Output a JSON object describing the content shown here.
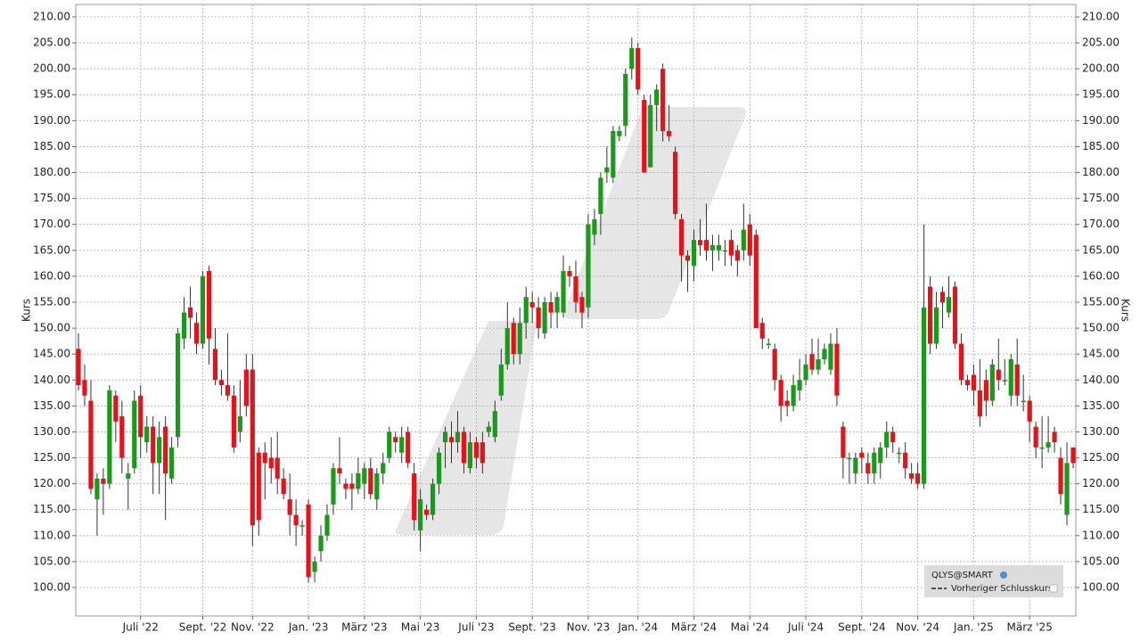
{
  "chart_data": {
    "type": "candlestick",
    "y_label": "Kurs",
    "up_color": "#1a9a1a",
    "down_color": "#e6121a",
    "grid": true,
    "legend": {
      "title": "QLYS@SMART",
      "items": [
        "Vorheriger Schlusskurs"
      ],
      "position": "lower right"
    },
    "ylim": [
      94.5,
      212.4
    ],
    "yticks": [
      {
        "value": 100,
        "label": "100.00"
      },
      {
        "value": 105,
        "label": "105.00"
      },
      {
        "value": 110,
        "label": "110.00"
      },
      {
        "value": 115,
        "label": "115.00"
      },
      {
        "value": 120,
        "label": "120.00"
      },
      {
        "value": 125,
        "label": "125.00"
      },
      {
        "value": 130,
        "label": "130.00"
      },
      {
        "value": 135,
        "label": "135.00"
      },
      {
        "value": 140,
        "label": "140.00"
      },
      {
        "value": 145,
        "label": "145.00"
      },
      {
        "value": 150,
        "label": "150.00"
      },
      {
        "value": 155,
        "label": "155.00"
      },
      {
        "value": 160,
        "label": "160.00"
      },
      {
        "value": 165,
        "label": "165.00"
      },
      {
        "value": 170,
        "label": "170.00"
      },
      {
        "value": 175,
        "label": "175.00"
      },
      {
        "value": 180,
        "label": "180.00"
      },
      {
        "value": 185,
        "label": "185.00"
      },
      {
        "value": 190,
        "label": "190.00"
      },
      {
        "value": 195,
        "label": "195.00"
      },
      {
        "value": 200,
        "label": "200.00"
      },
      {
        "value": 205,
        "label": "205.00"
      },
      {
        "value": 210,
        "label": "210.00"
      }
    ],
    "categories": [
      null,
      null,
      null,
      null,
      null,
      null,
      null,
      null,
      null,
      null,
      "Juli '22",
      null,
      null,
      null,
      null,
      null,
      null,
      null,
      null,
      null,
      "Sept. '22",
      null,
      null,
      null,
      null,
      null,
      null,
      null,
      "Nov. '22",
      null,
      null,
      null,
      null,
      null,
      null,
      null,
      null,
      "Jan. '23",
      null,
      null,
      null,
      null,
      null,
      null,
      null,
      null,
      "März '23",
      null,
      null,
      null,
      null,
      null,
      null,
      null,
      null,
      "Mai '23",
      null,
      null,
      null,
      null,
      null,
      null,
      null,
      null,
      "Juli '23",
      null,
      null,
      null,
      null,
      null,
      null,
      null,
      null,
      "Sept. '23",
      null,
      null,
      null,
      null,
      null,
      null,
      null,
      null,
      "Nov. '23",
      null,
      null,
      null,
      null,
      null,
      null,
      null,
      "Jan. '24",
      null,
      null,
      null,
      null,
      null,
      null,
      null,
      null,
      "März '24",
      null,
      null,
      null,
      null,
      null,
      null,
      null,
      null,
      "Mai '24",
      null,
      null,
      null,
      null,
      null,
      null,
      null,
      null,
      "Juli '24",
      null,
      null,
      null,
      null,
      null,
      null,
      null,
      null,
      "Sept. '24",
      null,
      null,
      null,
      null,
      null,
      null,
      null,
      null,
      "Nov. '24",
      null,
      null,
      null,
      null,
      null,
      null,
      null,
      null,
      "Jan. '25",
      null,
      null,
      null,
      null,
      null,
      null,
      null,
      null,
      "März '25",
      null,
      null,
      null,
      null,
      null,
      null,
      null
    ],
    "open": [
      146,
      140,
      136,
      117,
      121,
      120,
      137,
      133,
      121,
      123,
      137,
      128,
      131,
      124,
      131,
      121,
      129,
      148,
      154,
      151,
      147,
      161,
      146,
      140,
      139,
      137,
      130,
      142,
      142,
      126,
      126,
      125,
      125,
      121,
      117,
      114,
      112,
      116,
      103,
      107,
      110,
      116,
      123,
      120,
      120,
      119,
      120,
      123,
      117,
      122,
      125,
      129,
      126,
      130,
      122,
      111,
      115,
      114,
      120,
      128,
      129,
      128,
      130,
      123,
      128,
      128,
      130,
      129,
      137,
      143,
      151,
      145,
      151,
      155,
      154,
      149,
      155,
      153,
      153,
      161,
      160,
      156,
      154,
      168,
      172,
      180,
      179,
      187,
      189,
      200,
      204,
      194,
      181,
      193,
      200,
      188,
      184,
      171,
      164,
      162,
      167,
      167,
      165,
      165,
      165,
      167,
      165,
      165,
      170,
      168,
      151,
      147,
      146,
      140,
      136,
      135,
      138,
      140,
      145,
      142,
      144,
      142,
      147,
      131,
      125,
      122,
      126,
      124,
      122,
      124,
      127,
      130,
      126,
      126,
      122,
      122,
      120,
      158,
      147,
      157,
      153,
      158,
      147,
      140,
      141,
      138,
      140,
      136,
      142,
      140,
      137,
      143,
      136,
      136,
      131,
      127,
      127,
      130,
      125,
      114,
      127
    ],
    "close": [
      139,
      137,
      119,
      121,
      120,
      138,
      132,
      125,
      122,
      136,
      129,
      131,
      124,
      129,
      122,
      127,
      149,
      153,
      152,
      147,
      160,
      148,
      140,
      139,
      137,
      127,
      133,
      135,
      112,
      113,
      124,
      123,
      121,
      118,
      114,
      112,
      112,
      102,
      105,
      110,
      114,
      123,
      122,
      119,
      119,
      122,
      123,
      118,
      122,
      124,
      130,
      128,
      129,
      124,
      113,
      117,
      114,
      120,
      126,
      130,
      128,
      130,
      124,
      128,
      125,
      124,
      131,
      134,
      143,
      150,
      145,
      151,
      156,
      154,
      150,
      155,
      153,
      156,
      161,
      160,
      155,
      153,
      170,
      171,
      179,
      181,
      188,
      188,
      199,
      204,
      196,
      180,
      193,
      196,
      188,
      187,
      172,
      164,
      163,
      167,
      166,
      165,
      166,
      166,
      165,
      164,
      163,
      169,
      164,
      150,
      148,
      147,
      140,
      135,
      135,
      139,
      140,
      143,
      142,
      144,
      146,
      147,
      137,
      125,
      125,
      125,
      125,
      122,
      126,
      127,
      130,
      128,
      126,
      123,
      121,
      120,
      154,
      147,
      154,
      155,
      156,
      147,
      140,
      139,
      138,
      133,
      136,
      143,
      140,
      140,
      144,
      137,
      136,
      132,
      127,
      127,
      128,
      128,
      118,
      124,
      124
    ],
    "high": [
      149,
      143,
      140,
      122,
      123,
      139,
      138,
      136,
      124,
      138,
      139,
      133,
      133,
      132,
      133,
      129,
      150,
      156,
      158,
      153,
      161,
      162,
      150,
      142,
      149,
      139,
      140,
      145,
      145,
      127,
      128,
      129,
      130,
      123,
      122,
      117,
      113,
      117,
      106,
      112,
      116,
      124,
      129,
      121,
      122,
      125,
      124,
      125,
      123,
      126,
      131,
      130,
      131,
      131,
      124,
      119,
      116,
      121,
      127,
      131,
      132,
      134,
      131,
      130,
      129,
      130,
      132,
      136,
      146,
      155,
      152,
      154,
      158,
      157,
      156,
      156,
      157,
      157,
      164,
      162,
      163,
      157,
      172,
      173,
      180,
      185,
      189,
      189,
      200,
      206,
      205,
      195,
      195,
      197,
      201,
      193,
      185,
      172,
      165,
      169,
      171,
      174,
      168,
      168,
      167,
      169,
      166,
      174,
      172,
      169,
      152,
      148,
      147,
      141,
      138,
      141,
      144,
      145,
      148,
      148,
      147,
      149,
      150,
      132,
      126,
      126,
      127,
      126,
      127,
      128,
      132,
      131,
      127,
      128,
      124,
      124,
      170,
      160,
      157,
      158,
      160,
      159,
      149,
      141,
      143,
      144,
      142,
      144,
      148,
      144,
      145,
      148,
      141,
      137,
      132,
      133,
      133,
      131,
      127,
      128,
      127
    ],
    "low": [
      138,
      135,
      118,
      110,
      114,
      119,
      128,
      122,
      115,
      122,
      125,
      126,
      118,
      118,
      113,
      120,
      127,
      146,
      148,
      145,
      146,
      143,
      139,
      137,
      136,
      126,
      128,
      133,
      108,
      110,
      117,
      120,
      118,
      117,
      110,
      108,
      110,
      101,
      101,
      105,
      109,
      114,
      120,
      117,
      115,
      118,
      117,
      117,
      115,
      120,
      124,
      126,
      124,
      123,
      111,
      107,
      113,
      113,
      118,
      123,
      124,
      126,
      122,
      122,
      123,
      122,
      129,
      128,
      136,
      142,
      143,
      143,
      148,
      151,
      148,
      148,
      150,
      150,
      152,
      158,
      153,
      150,
      152,
      166,
      168,
      178,
      178,
      186,
      187,
      198,
      195,
      180,
      181,
      188,
      186,
      186,
      171,
      159,
      157,
      159,
      164,
      163,
      161,
      163,
      162,
      162,
      160,
      163,
      162,
      150,
      146,
      146,
      138,
      132,
      133,
      134,
      136,
      139,
      141,
      141,
      143,
      141,
      135,
      121,
      120,
      120,
      122,
      120,
      120,
      121,
      125,
      126,
      124,
      121,
      120,
      119,
      119,
      145,
      146,
      150,
      152,
      146,
      139,
      138,
      135,
      131,
      133,
      135,
      138,
      139,
      135,
      135,
      134,
      128,
      125,
      123,
      126,
      126,
      116,
      112,
      123
    ]
  }
}
